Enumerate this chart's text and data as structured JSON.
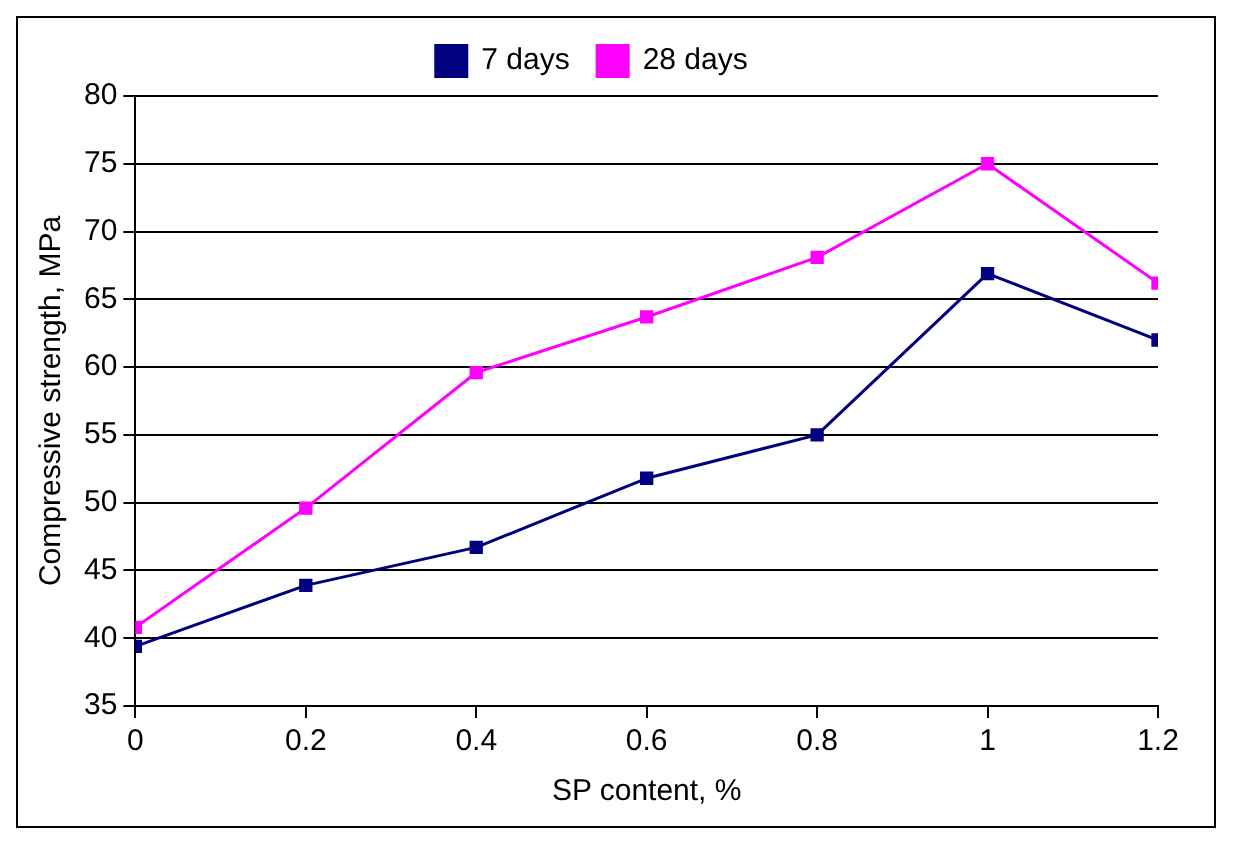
{
  "chart_data": {
    "type": "line",
    "xlabel": "SP content, %",
    "ylabel": "Compressive strength, MPa",
    "x": [
      0,
      0.2,
      0.4,
      0.6,
      0.8,
      1,
      1.2
    ],
    "series": [
      {
        "name": "7 days",
        "color": "#000080",
        "values": [
          39.4,
          43.9,
          46.7,
          51.8,
          55,
          66.9,
          62
        ]
      },
      {
        "name": "28 days",
        "color": "#ff00ff",
        "values": [
          40.8,
          49.6,
          59.6,
          63.7,
          68.1,
          75,
          66.2
        ]
      }
    ],
    "xlim": [
      0,
      1.2
    ],
    "xticks": [
      0,
      0.2,
      0.4,
      0.6,
      0.8,
      1,
      1.2
    ],
    "ylim": [
      35,
      80
    ],
    "yticks": [
      35,
      40,
      45,
      50,
      55,
      60,
      65,
      70,
      75,
      80
    ],
    "grid": "y",
    "legend": "top",
    "marker": "square",
    "line_style": "solid"
  }
}
